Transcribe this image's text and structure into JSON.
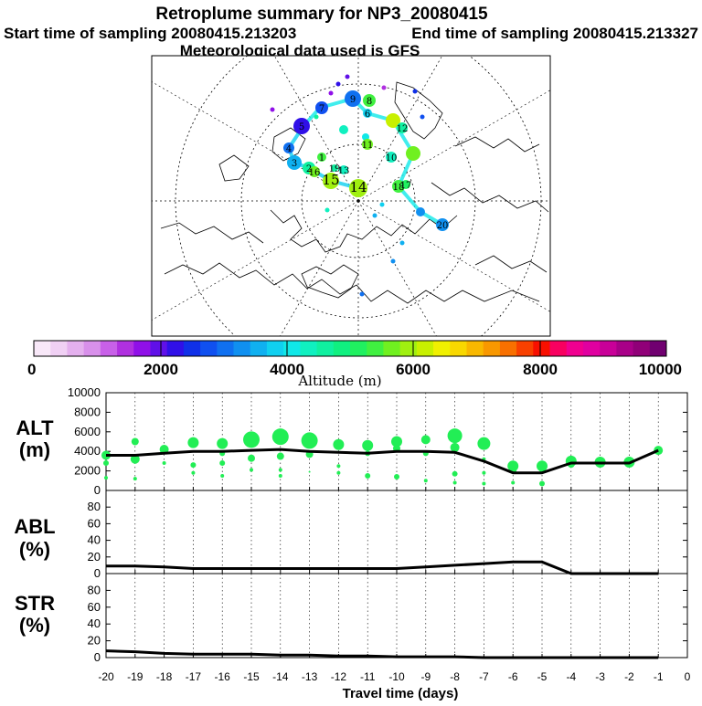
{
  "header": {
    "title": "Retroplume summary for NP3_20080415",
    "start_label": "Start time of sampling 20080415.213203",
    "end_label": "End time of sampling 20080415.213327",
    "met_label": "Meteorological data used is GFS"
  },
  "colorbar": {
    "caption": "Altitude (m)",
    "ticks": [
      "0",
      "2000",
      "4000",
      "6000",
      "8000",
      "10000"
    ],
    "colors": [
      "#f8e8f8",
      "#f0d0f4",
      "#e4b0ee",
      "#d890ea",
      "#c860e8",
      "#b030e0",
      "#9010e8",
      "#6010e8",
      "#3010e8",
      "#1030e8",
      "#1050f0",
      "#1070f0",
      "#1090f0",
      "#10b0f0",
      "#10d0f0",
      "#10e8e8",
      "#10f0c0",
      "#10f0a0",
      "#10f080",
      "#20f060",
      "#40f040",
      "#70f020",
      "#a0f010",
      "#c8f000",
      "#f0f000",
      "#f8d800",
      "#f8b800",
      "#f89800",
      "#f87000",
      "#f84000",
      "#f81000",
      "#f80060",
      "#f00090",
      "#e000a0",
      "#c80098",
      "#a80088",
      "#900078",
      "#700070"
    ]
  },
  "map": {
    "day_labels": [
      "1",
      "2",
      "3",
      "4",
      "5",
      "6",
      "7",
      "8",
      "9",
      "10",
      "11",
      "12",
      "13",
      "14",
      "15",
      "16",
      "17",
      "18",
      "19",
      "20"
    ]
  },
  "chart_data": [
    {
      "type": "line",
      "panel": "ALT",
      "label": "ALT",
      "unit": "(m)",
      "ylim": [
        0,
        10000
      ],
      "yticks": [
        "0",
        "2000",
        "4000",
        "6000",
        "8000",
        "10000"
      ],
      "x": [
        -20,
        -19,
        -18,
        -17,
        -16,
        -15,
        -14,
        -13,
        -12,
        -11,
        -10,
        -9,
        -8,
        -7,
        -6,
        -5,
        -4,
        -3,
        -2,
        -1
      ],
      "mean": [
        3600,
        3600,
        3800,
        4000,
        4000,
        4100,
        4200,
        4000,
        3900,
        3800,
        4000,
        4000,
        3900,
        3000,
        1800,
        1800,
        2800,
        2800,
        2800,
        4100
      ],
      "bubbles": [
        {
          "x": -20,
          "y": 3600,
          "s": 5
        },
        {
          "x": -20,
          "y": 2800,
          "s": 3
        },
        {
          "x": -20,
          "y": 1300,
          "s": 2
        },
        {
          "x": -19,
          "y": 5000,
          "s": 4
        },
        {
          "x": -19,
          "y": 3200,
          "s": 5
        },
        {
          "x": -19,
          "y": 1200,
          "s": 2
        },
        {
          "x": -18,
          "y": 4200,
          "s": 5
        },
        {
          "x": -18,
          "y": 2800,
          "s": 2
        },
        {
          "x": -17,
          "y": 4900,
          "s": 6
        },
        {
          "x": -17,
          "y": 2600,
          "s": 3
        },
        {
          "x": -17,
          "y": 1800,
          "s": 2
        },
        {
          "x": -16,
          "y": 4800,
          "s": 6
        },
        {
          "x": -16,
          "y": 3800,
          "s": 3
        },
        {
          "x": -16,
          "y": 2800,
          "s": 3
        },
        {
          "x": -16,
          "y": 1500,
          "s": 2
        },
        {
          "x": -15,
          "y": 5200,
          "s": 9
        },
        {
          "x": -15,
          "y": 3300,
          "s": 4
        },
        {
          "x": -15,
          "y": 2100,
          "s": 2
        },
        {
          "x": -14,
          "y": 5500,
          "s": 9
        },
        {
          "x": -14,
          "y": 3500,
          "s": 4
        },
        {
          "x": -14,
          "y": 2100,
          "s": 2
        },
        {
          "x": -14,
          "y": 1500,
          "s": 2
        },
        {
          "x": -13,
          "y": 5100,
          "s": 9
        },
        {
          "x": -13,
          "y": 3700,
          "s": 4
        },
        {
          "x": -13,
          "y": 1900,
          "s": 1
        },
        {
          "x": -12,
          "y": 4700,
          "s": 6
        },
        {
          "x": -12,
          "y": 2500,
          "s": 2
        },
        {
          "x": -12,
          "y": 1800,
          "s": 2
        },
        {
          "x": -11,
          "y": 4600,
          "s": 6
        },
        {
          "x": -11,
          "y": 3800,
          "s": 3
        },
        {
          "x": -11,
          "y": 1500,
          "s": 3
        },
        {
          "x": -10,
          "y": 5000,
          "s": 6
        },
        {
          "x": -10,
          "y": 4300,
          "s": 4
        },
        {
          "x": -10,
          "y": 1400,
          "s": 3
        },
        {
          "x": -9,
          "y": 5200,
          "s": 5
        },
        {
          "x": -9,
          "y": 3800,
          "s": 3
        },
        {
          "x": -9,
          "y": 1000,
          "s": 2
        },
        {
          "x": -8,
          "y": 5600,
          "s": 8
        },
        {
          "x": -8,
          "y": 4400,
          "s": 5
        },
        {
          "x": -8,
          "y": 1700,
          "s": 3
        },
        {
          "x": -8,
          "y": 800,
          "s": 2
        },
        {
          "x": -7,
          "y": 4800,
          "s": 7
        },
        {
          "x": -7,
          "y": 3200,
          "s": 2
        },
        {
          "x": -7,
          "y": 1800,
          "s": 2
        },
        {
          "x": -7,
          "y": 700,
          "s": 2
        },
        {
          "x": -6,
          "y": 2500,
          "s": 6
        },
        {
          "x": -6,
          "y": 2100,
          "s": 4
        },
        {
          "x": -6,
          "y": 800,
          "s": 2
        },
        {
          "x": -5,
          "y": 2500,
          "s": 6
        },
        {
          "x": -5,
          "y": 2100,
          "s": 3
        },
        {
          "x": -5,
          "y": 700,
          "s": 3
        },
        {
          "x": -4,
          "y": 3000,
          "s": 6
        },
        {
          "x": -4,
          "y": 2700,
          "s": 4
        },
        {
          "x": -3,
          "y": 2900,
          "s": 6
        },
        {
          "x": -2,
          "y": 2900,
          "s": 6
        },
        {
          "x": -1,
          "y": 4100,
          "s": 5
        }
      ]
    },
    {
      "type": "line",
      "panel": "ABL",
      "label": "ABL",
      "unit": "(%)",
      "ylim": [
        0,
        100
      ],
      "yticks": [
        "0",
        "20",
        "40",
        "60",
        "80"
      ],
      "x": [
        -20,
        -19,
        -18,
        -17,
        -16,
        -15,
        -14,
        -13,
        -12,
        -11,
        -10,
        -9,
        -8,
        -7,
        -6,
        -5,
        -4,
        -3,
        -2,
        -1
      ],
      "values": [
        9,
        9,
        8,
        6,
        6,
        6,
        6,
        6,
        6,
        6,
        6,
        8,
        10,
        12,
        14,
        14,
        0,
        0,
        0,
        0
      ]
    },
    {
      "type": "line",
      "panel": "STR",
      "label": "STR",
      "unit": "(%)",
      "ylim": [
        0,
        100
      ],
      "yticks": [
        "0",
        "20",
        "40",
        "60",
        "80"
      ],
      "x": [
        -20,
        -19,
        -18,
        -17,
        -16,
        -15,
        -14,
        -13,
        -12,
        -11,
        -10,
        -9,
        -8,
        -7,
        -6,
        -5,
        -4,
        -3,
        -2,
        -1
      ],
      "values": [
        8,
        7,
        5,
        4,
        4,
        4,
        3,
        3,
        2,
        2,
        1,
        1,
        1,
        0,
        0,
        0,
        0,
        0,
        0,
        0
      ]
    }
  ],
  "xaxis": {
    "label": "Travel time (days)",
    "ticks": [
      "-20",
      "-19",
      "-18",
      "-17",
      "-16",
      "-15",
      "-14",
      "-13",
      "-12",
      "-11",
      "-10",
      "-9",
      "-8",
      "-7",
      "-6",
      "-5",
      "-4",
      "-3",
      "-2",
      "-1",
      "0"
    ]
  },
  "colors": {
    "bubble": "#22ee55",
    "line": "#000000"
  }
}
